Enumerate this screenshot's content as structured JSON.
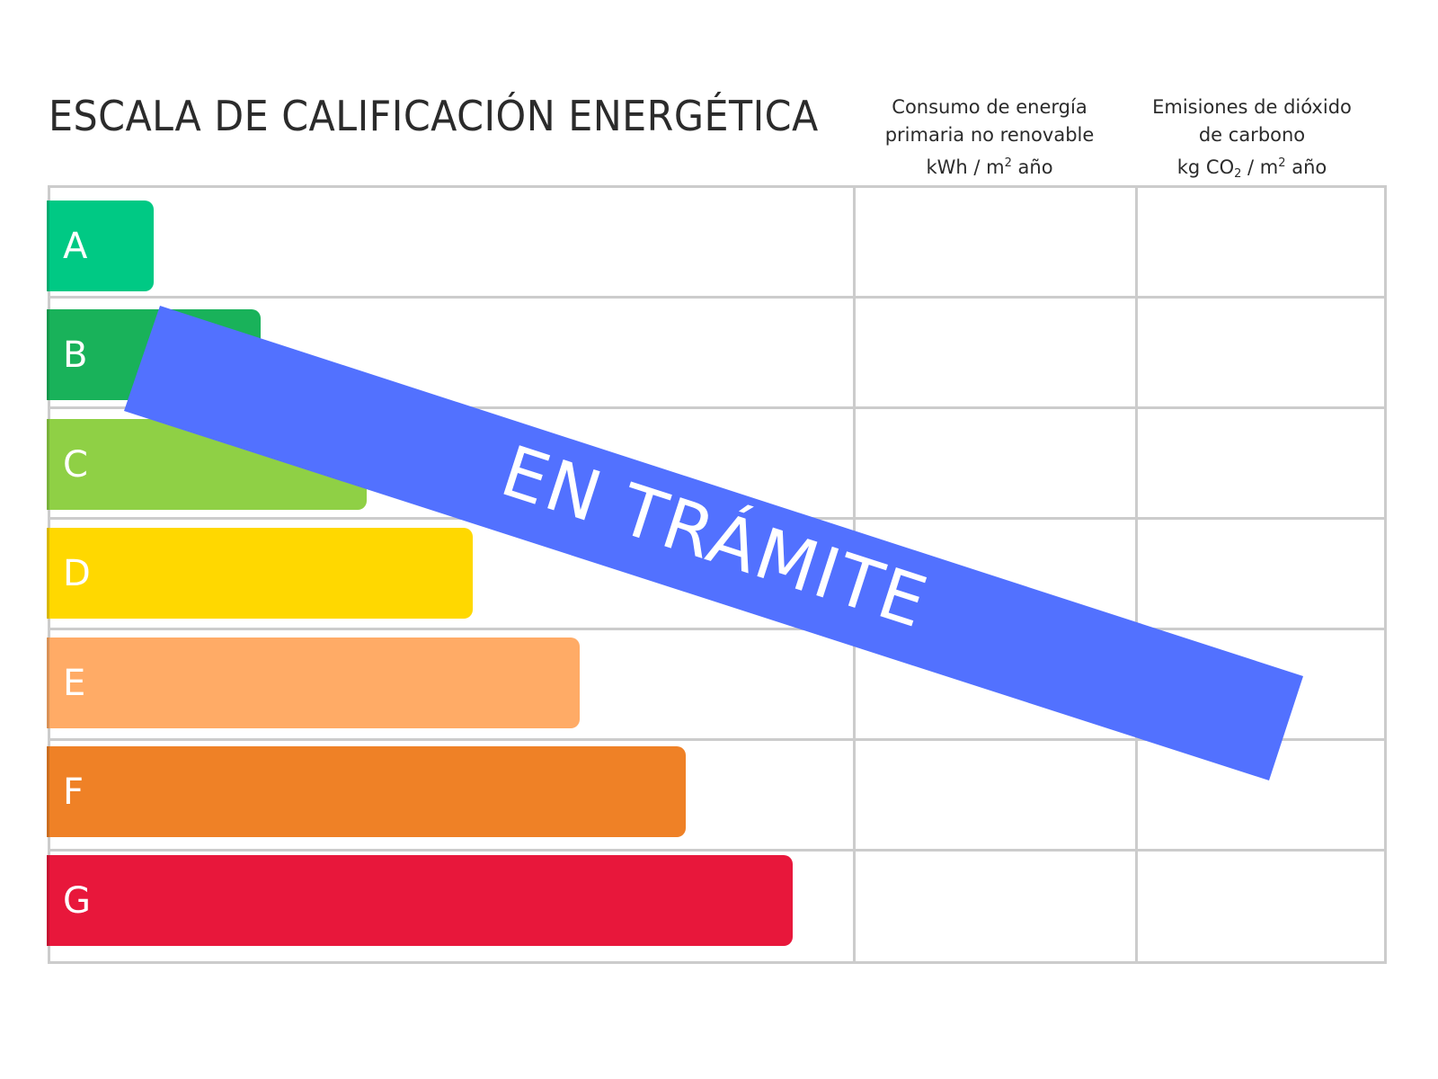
{
  "title": "ESCALA DE CALIFICACIÓN ENERGÉTICA",
  "columns": {
    "consumo": {
      "line1": "Consumo de energía",
      "line2": "primaria no renovable",
      "unit_a": "kWh / m",
      "unit_sup": "2",
      "unit_b": " año"
    },
    "emisiones": {
      "line1": "Emisiones de dióxido",
      "line2": "de carbono",
      "unit_a": "kg CO",
      "unit_sub": "2",
      "unit_mid": " / m",
      "unit_sup": "2",
      "unit_b": " año"
    }
  },
  "ratings": [
    {
      "letter": "A",
      "color": "#00c984"
    },
    {
      "letter": "B",
      "color": "#19b25a"
    },
    {
      "letter": "C",
      "color": "#8fd045"
    },
    {
      "letter": "D",
      "color": "#ffd800"
    },
    {
      "letter": "E",
      "color": "#ffab66"
    },
    {
      "letter": "F",
      "color": "#ef8126"
    },
    {
      "letter": "G",
      "color": "#e8173b"
    }
  ],
  "banner": {
    "text": "EN TRÁMITE",
    "color": "#5271ff"
  }
}
